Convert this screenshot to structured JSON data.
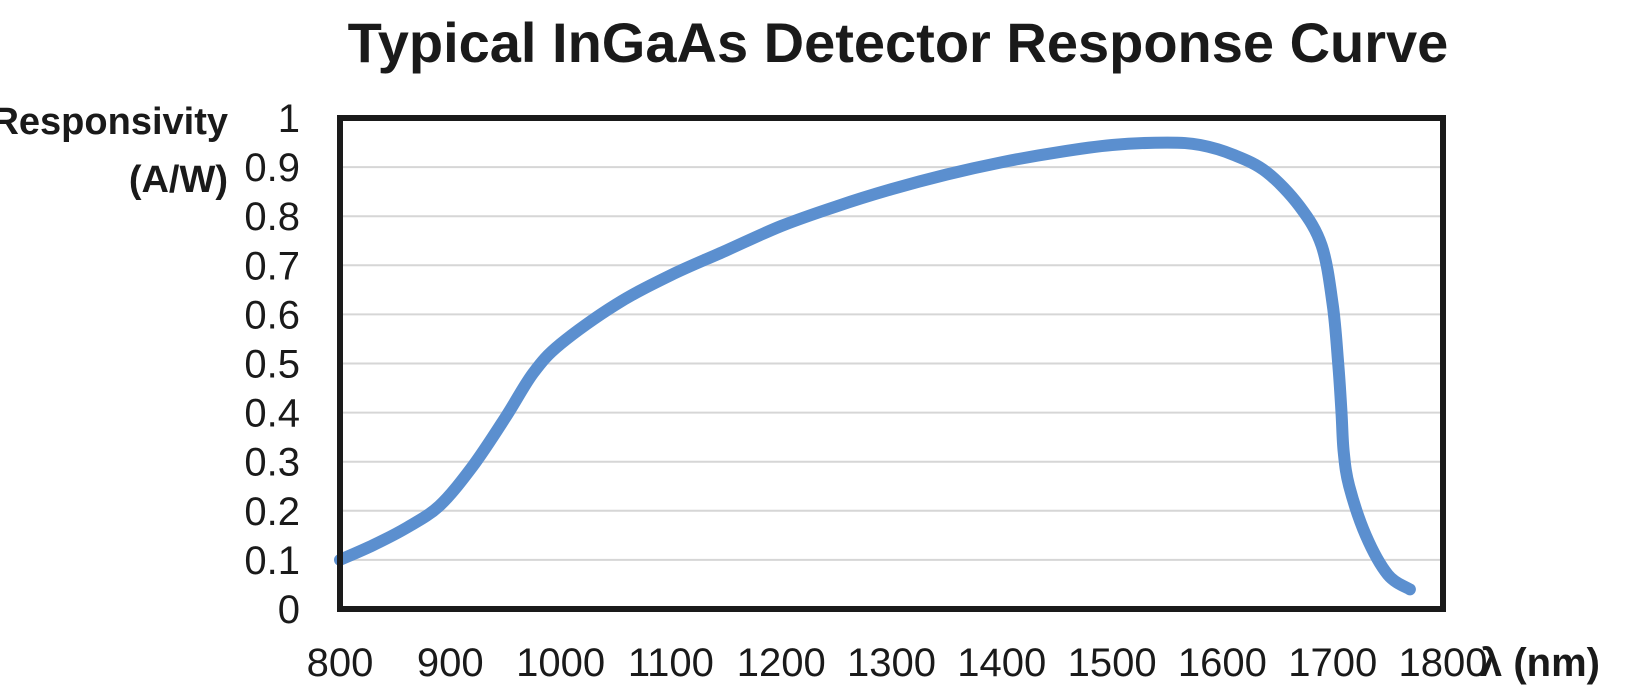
{
  "chart_data": {
    "type": "line",
    "title": "Typical InGaAs Detector Response Curve",
    "ylabel_line1": "Responsivity",
    "ylabel_line2": "(A/W)",
    "xlabel": "λ (nm)",
    "xlim": [
      800,
      1800
    ],
    "ylim": [
      0,
      1
    ],
    "x_ticks": [
      800,
      900,
      1000,
      1100,
      1200,
      1300,
      1400,
      1500,
      1600,
      1700,
      1800
    ],
    "y_ticks": [
      0,
      0.1,
      0.2,
      0.3,
      0.4,
      0.5,
      0.6,
      0.7,
      0.8,
      0.9,
      1
    ],
    "grid": "horizontal",
    "legend": "none",
    "line_color": "#5b8fcf",
    "series": [
      {
        "x": [
          800,
          830,
          860,
          890,
          920,
          950,
          975,
          1000,
          1050,
          1100,
          1150,
          1200,
          1250,
          1300,
          1350,
          1400,
          1450,
          1500,
          1550,
          1580,
          1610,
          1640,
          1670,
          1690,
          1700,
          1705,
          1708,
          1710,
          1715,
          1730,
          1750,
          1770
        ],
        "y": [
          0.1,
          0.13,
          0.165,
          0.21,
          0.29,
          0.39,
          0.48,
          0.54,
          0.62,
          0.68,
          0.73,
          0.78,
          0.82,
          0.855,
          0.885,
          0.91,
          0.93,
          0.945,
          0.95,
          0.945,
          0.925,
          0.89,
          0.82,
          0.74,
          0.62,
          0.5,
          0.4,
          0.32,
          0.25,
          0.15,
          0.07,
          0.04
        ]
      }
    ]
  }
}
